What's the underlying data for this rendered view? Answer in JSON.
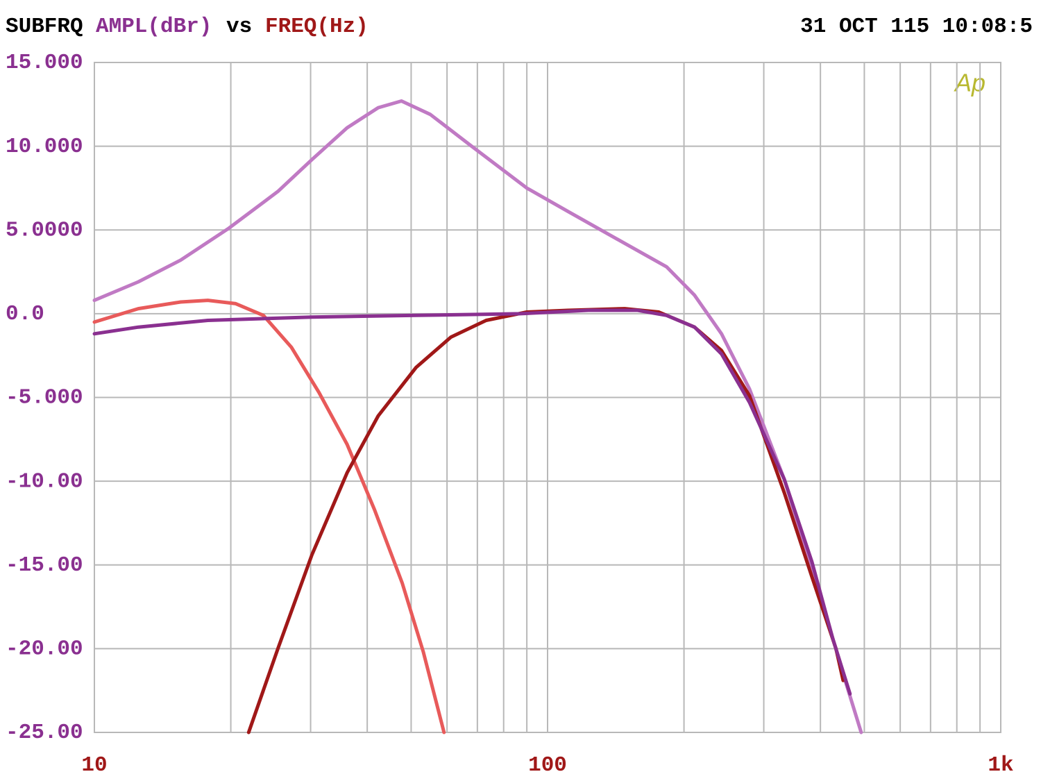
{
  "chart_data": {
    "type": "line",
    "title": "SUBFRQ",
    "ylabel": "AMPL(dBr)",
    "vs": "vs",
    "xlabel": "FREQ(Hz)",
    "timestamp": "31 OCT 115 10:08:5",
    "logo": "Ap",
    "xscale": "log",
    "grid": true,
    "xlim": [
      10,
      1000
    ],
    "xticks": [
      10,
      100,
      {
        "value": 1000,
        "label": "1k"
      }
    ],
    "xminor": [
      20,
      30,
      40,
      50,
      60,
      70,
      80,
      90,
      200,
      300,
      400,
      500,
      600,
      700,
      800,
      900
    ],
    "ylim": [
      -25,
      15
    ],
    "yticks": [
      {
        "value": 15,
        "label": "15.000"
      },
      {
        "value": 10,
        "label": "10.000"
      },
      {
        "value": 5,
        "label": "5.0000"
      },
      {
        "value": 0,
        "label": "0.0"
      },
      {
        "value": -5,
        "label": "-5.000"
      },
      {
        "value": -10,
        "label": "-10.00"
      },
      {
        "value": -15,
        "label": "-15.00"
      },
      {
        "value": -20,
        "label": "-20.00"
      },
      {
        "value": -25,
        "label": "-25.00"
      }
    ],
    "series": [
      {
        "color": "#c07ac4",
        "x": [
          10,
          12.5,
          15.5,
          19.8,
          25.4,
          30.2,
          36.1,
          42.3,
          47.6,
          55.1,
          68,
          90,
          111,
          148,
          183,
          211,
          242,
          279,
          333,
          396,
          456,
          492
        ],
        "values": [
          0.8,
          1.9,
          3.2,
          5.1,
          7.3,
          9.2,
          11.1,
          12.3,
          12.7,
          11.9,
          10.0,
          7.5,
          6.1,
          4.2,
          2.8,
          1.1,
          -1.2,
          -4.5,
          -9.9,
          -16.5,
          -22.1,
          -25
        ]
      },
      {
        "color": "#e85a5a",
        "x": [
          10,
          12.5,
          15.5,
          17.8,
          20.5,
          23.6,
          27.2,
          31.3,
          36.1,
          41.5,
          47.8,
          53.2,
          59.1
        ],
        "values": [
          -0.5,
          0.3,
          0.7,
          0.8,
          0.6,
          -0.1,
          -2.0,
          -4.7,
          -7.8,
          -11.7,
          -16.1,
          -20.2,
          -25
        ]
      },
      {
        "color": "#a01818",
        "x": [
          21.9,
          25.4,
          30.2,
          36.1,
          42.3,
          51.3,
          61.2,
          73.2,
          90,
          111,
          148,
          176,
          211,
          242,
          279,
          333,
          383,
          433,
          449
        ],
        "values": [
          -25,
          -20.0,
          -14.4,
          -9.5,
          -6.1,
          -3.2,
          -1.4,
          -0.4,
          0.1,
          0.2,
          0.3,
          0.1,
          -0.8,
          -2.2,
          -4.9,
          -10.7,
          -15.7,
          -20.0,
          -21.9
        ]
      },
      {
        "color": "#8a3090",
        "x": [
          10,
          12.5,
          17.8,
          30.2,
          51.3,
          87,
          123,
          158,
          183,
          211,
          242,
          279,
          333,
          383,
          426,
          465
        ],
        "values": [
          -1.2,
          -0.8,
          -0.4,
          -0.2,
          -0.1,
          0.0,
          0.2,
          0.2,
          -0.1,
          -0.8,
          -2.4,
          -5.3,
          -9.9,
          -14.8,
          -19.4,
          -22.7
        ]
      }
    ]
  }
}
